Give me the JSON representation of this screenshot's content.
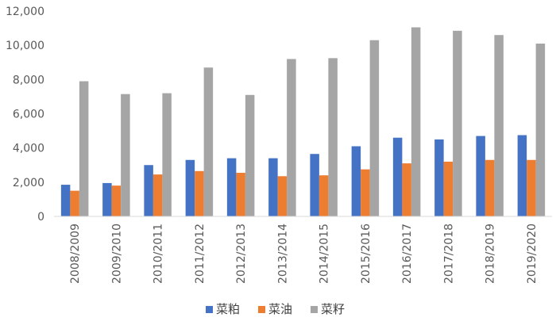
{
  "chart_data": {
    "type": "bar",
    "title": "",
    "xlabel": "",
    "ylabel": "",
    "ylim": [
      0,
      12000
    ],
    "yticks": [
      "0",
      "2,000",
      "4,000",
      "6,000",
      "8,000",
      "10,000",
      "12,000"
    ],
    "grid": false,
    "legend_position": "bottom",
    "categories": [
      "2008/2009",
      "2009/2010",
      "2010/2011",
      "2011/2012",
      "2012/2013",
      "2013/2014",
      "2014/2015",
      "2015/2016",
      "2016/2017",
      "2017/2018",
      "2018/2019",
      "2019/2020"
    ],
    "series": [
      {
        "name": "菜粕",
        "color": "#4472C4",
        "values": [
          1850,
          1950,
          3000,
          3300,
          3400,
          3400,
          3650,
          4100,
          4600,
          4500,
          4700,
          4750
        ]
      },
      {
        "name": "菜油",
        "color": "#ED7D31",
        "values": [
          1500,
          1800,
          2450,
          2650,
          2550,
          2350,
          2400,
          2750,
          3100,
          3200,
          3300,
          3300
        ]
      },
      {
        "name": "菜籽",
        "color": "#A5A5A5",
        "values": [
          7900,
          7150,
          7200,
          8700,
          7100,
          9200,
          9250,
          10300,
          11050,
          10850,
          10600,
          10100
        ]
      }
    ]
  }
}
